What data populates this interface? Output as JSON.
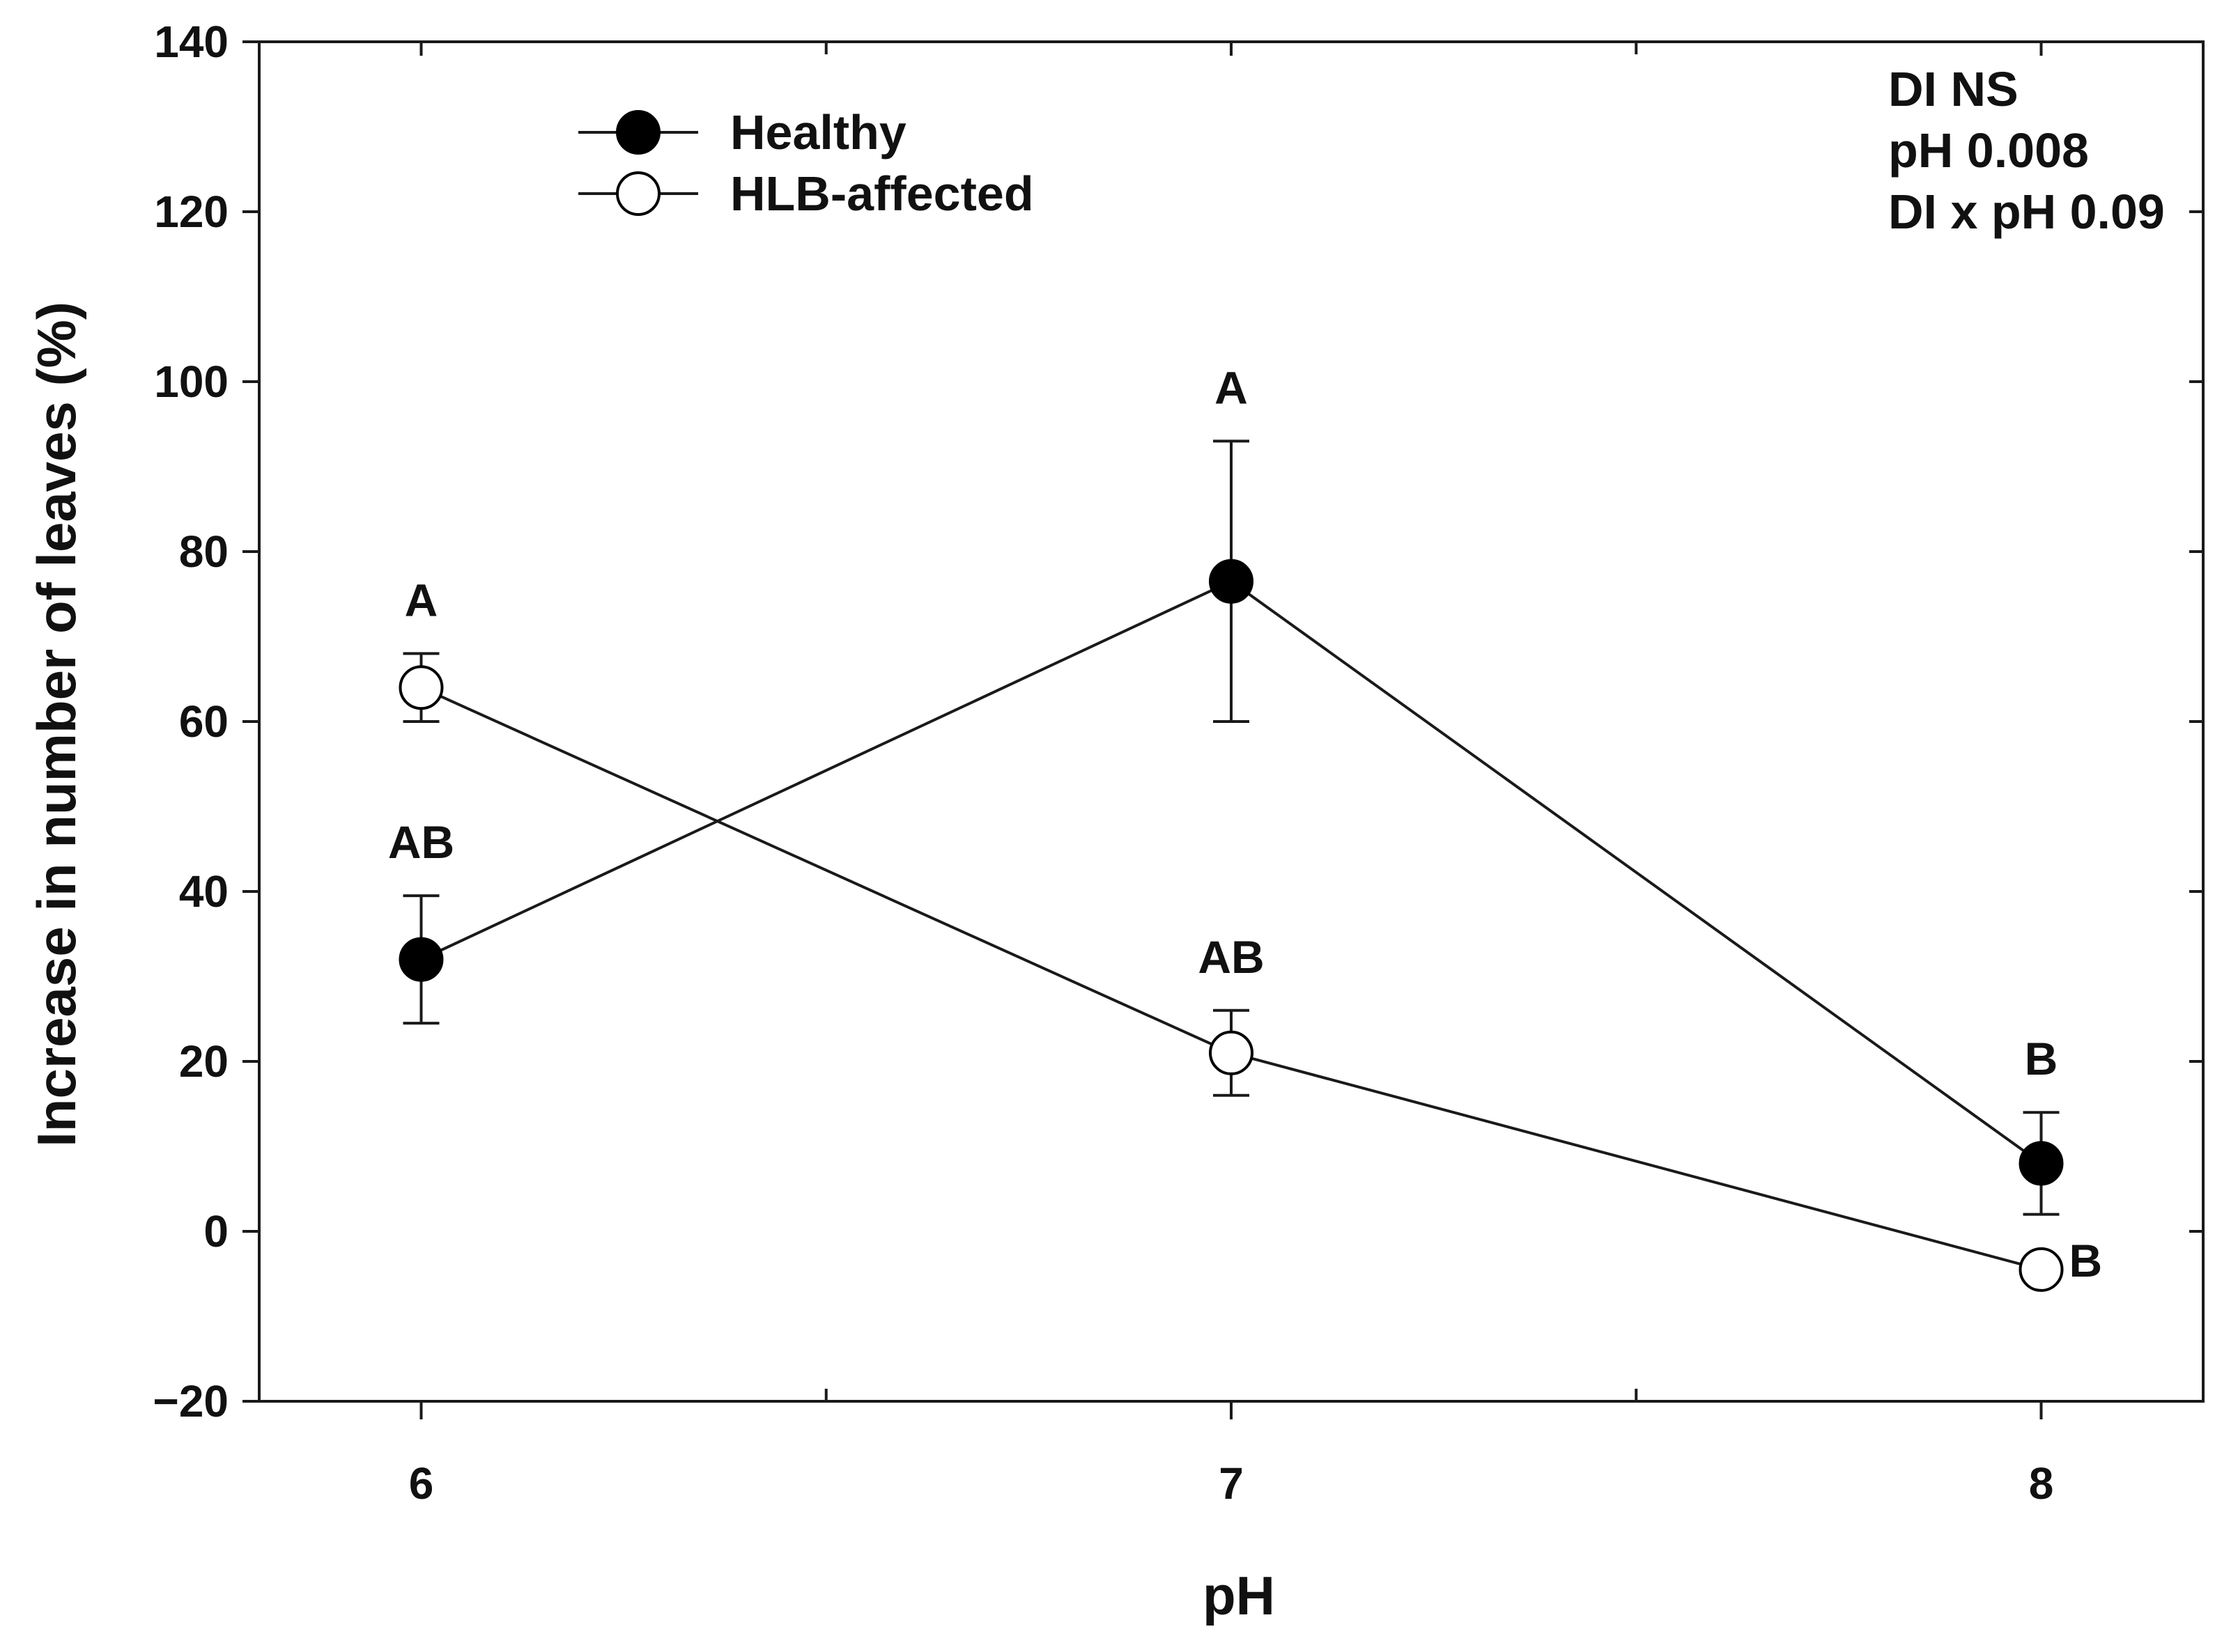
{
  "chart_data": {
    "type": "line",
    "title": "",
    "xlabel": "pH",
    "ylabel": "Increase in number of leaves (%)",
    "x": [
      6,
      7,
      8
    ],
    "xlim": [
      5.8,
      8.2
    ],
    "ylim": [
      -20,
      140
    ],
    "yticks": [
      -20,
      0,
      20,
      40,
      60,
      80,
      100,
      120,
      140
    ],
    "ytick_labels": [
      "−20",
      "0",
      "20",
      "40",
      "60",
      "80",
      "100",
      "120",
      "140"
    ],
    "xticks": [
      6,
      7,
      8
    ],
    "xtick_labels": [
      "6",
      "7",
      "8"
    ],
    "grid": false,
    "legend_position": "top-left",
    "series": [
      {
        "name": "Healthy",
        "marker": "filled-circle",
        "values": [
          32,
          76.5,
          8
        ],
        "error": [
          7.5,
          16.5,
          6
        ],
        "letters": [
          "AB",
          "A",
          "B"
        ]
      },
      {
        "name": "HLB-affected",
        "marker": "open-circle",
        "values": [
          64,
          21,
          -4.5
        ],
        "error": [
          4,
          5,
          0
        ],
        "letters": [
          "A",
          "AB",
          "B"
        ]
      }
    ],
    "annotations": [
      "DI  NS",
      "pH 0.008",
      "DI x pH 0.09"
    ]
  },
  "colors": {
    "line": "#1a1a1a",
    "marker_fill_healthy": "#000000",
    "marker_fill_hlb": "#ffffff"
  }
}
